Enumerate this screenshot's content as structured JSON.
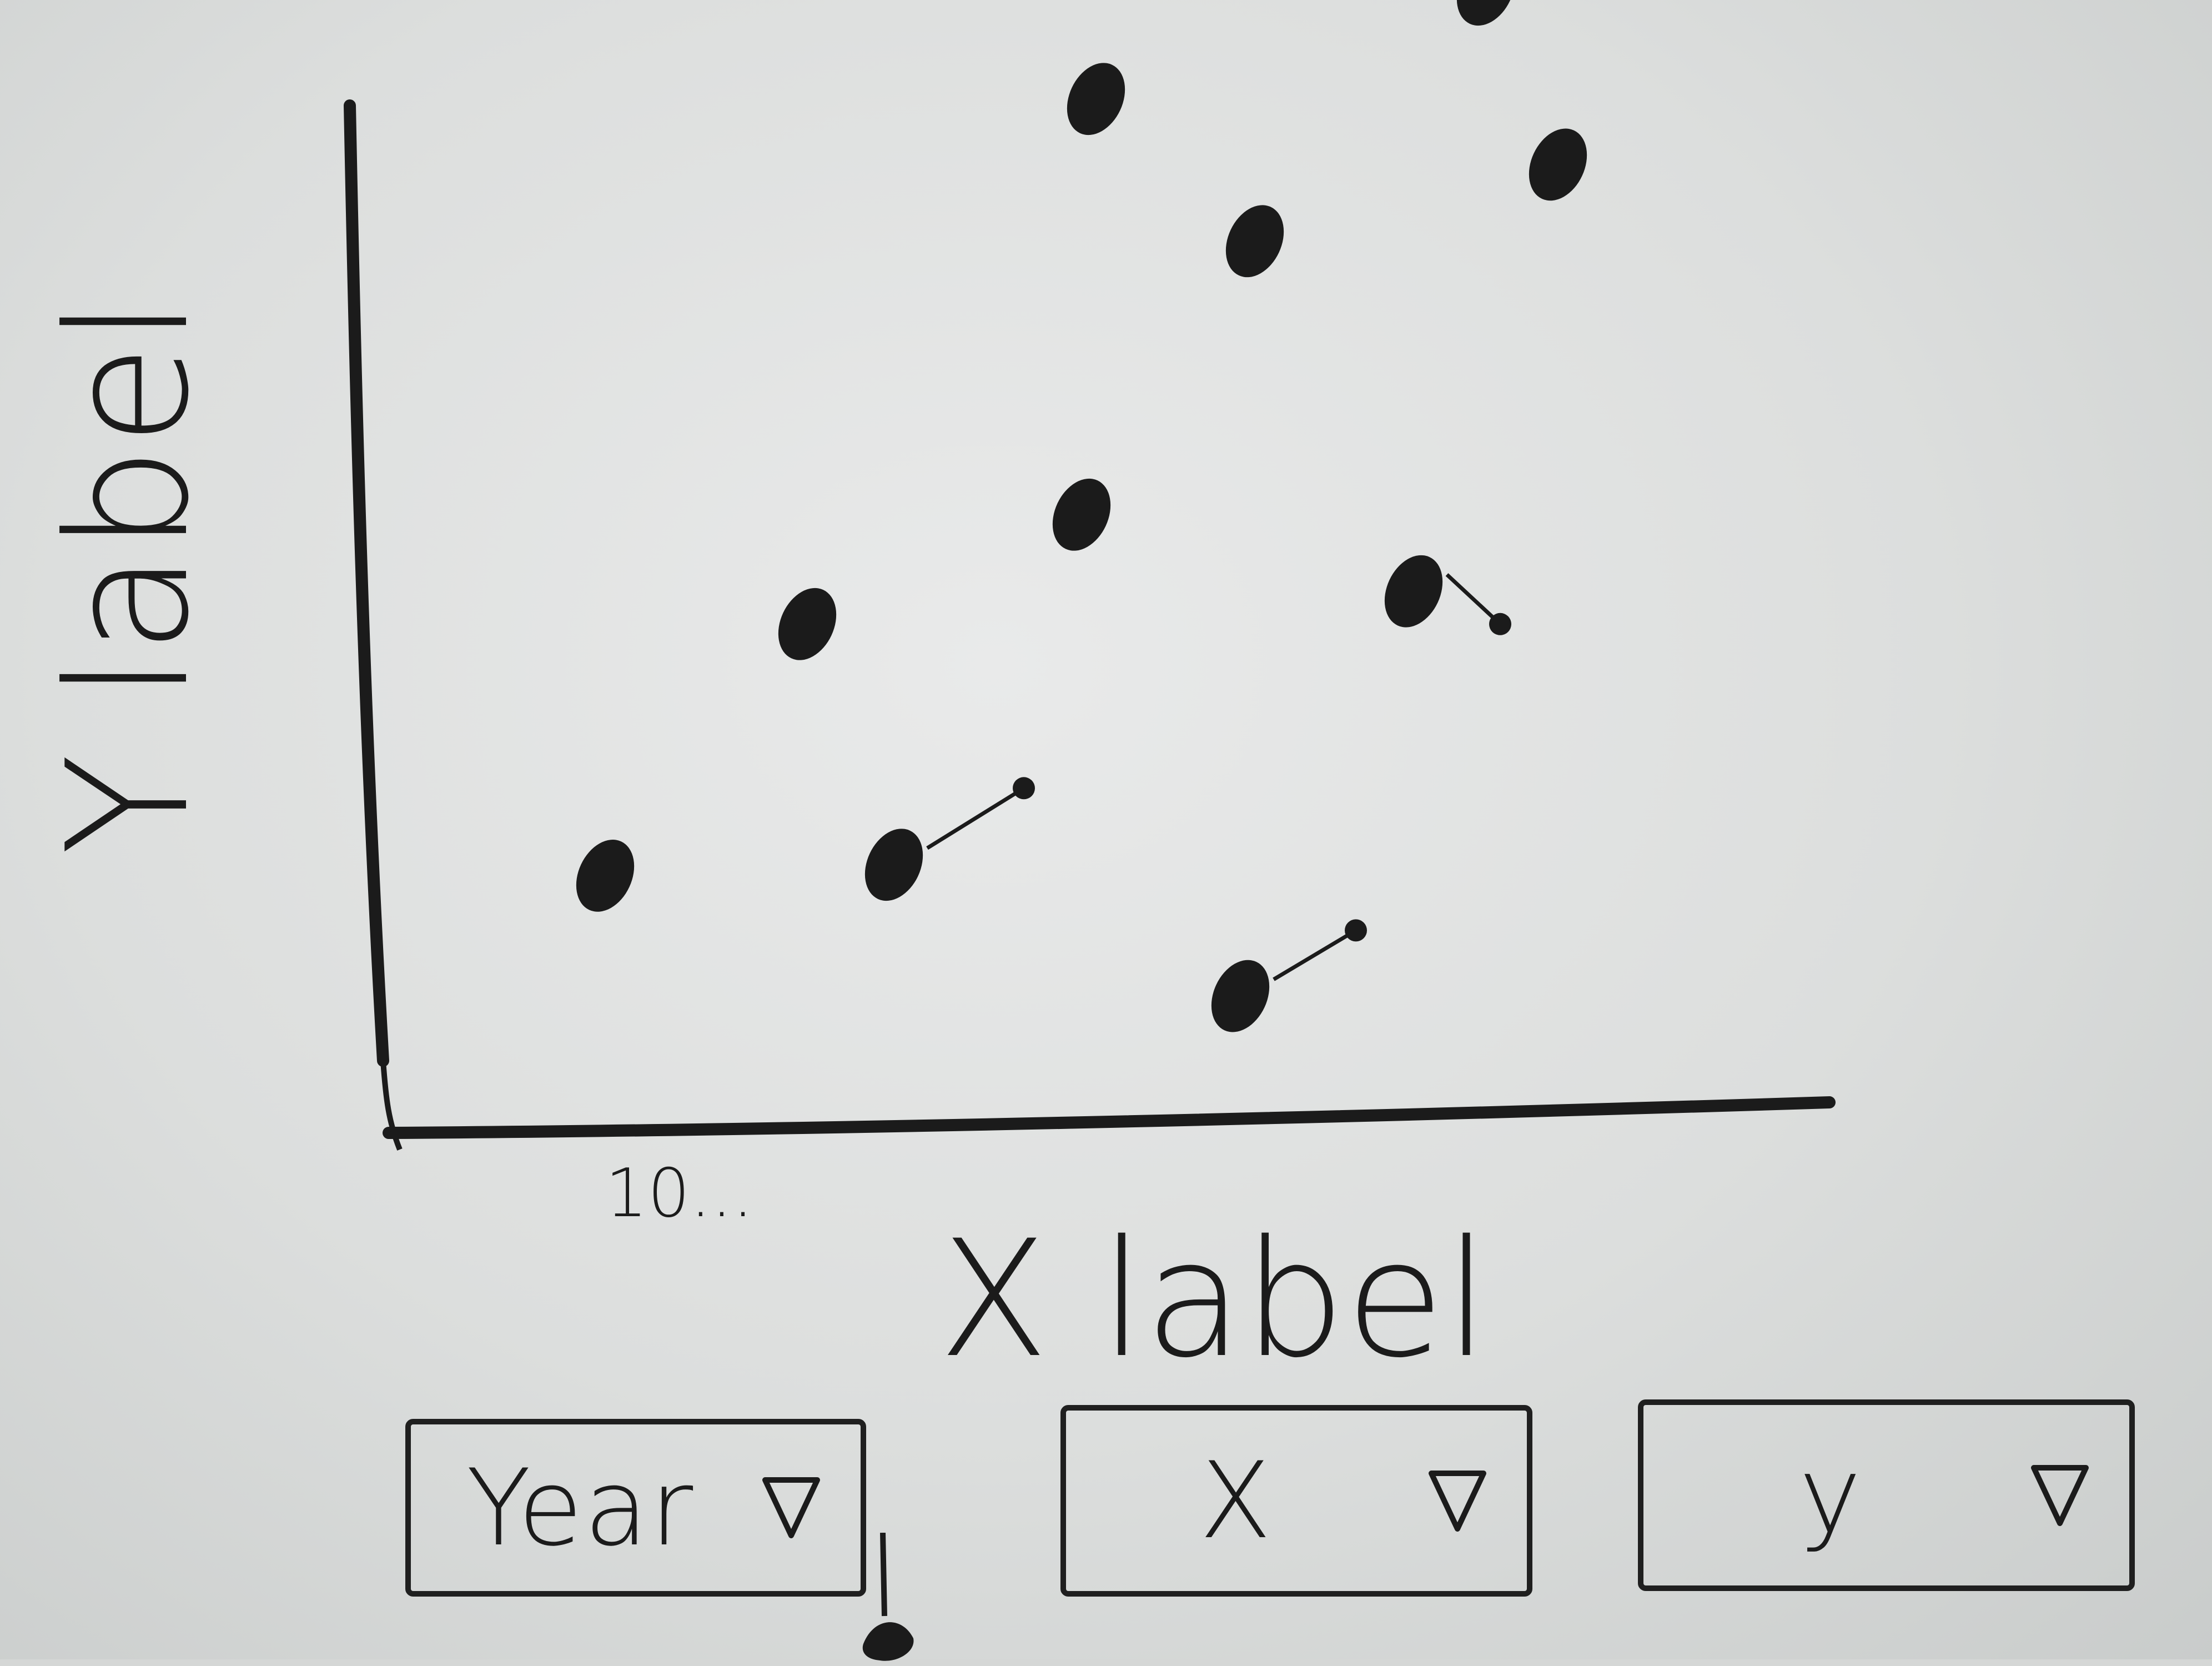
{
  "chart_data": {
    "type": "scatter",
    "title": "",
    "xlabel": "X label",
    "ylabel": "Y label",
    "x_tick_label": "10...",
    "xlim": [
      0,
      10
    ],
    "ylim": [
      0,
      10
    ],
    "grid": false,
    "points": [
      {
        "x": 1.5,
        "y": 2.3
      },
      {
        "x": 2.9,
        "y": 4.6
      },
      {
        "x": 3.5,
        "y": 2.4
      },
      {
        "x": 4.8,
        "y": 5.6
      },
      {
        "x": 4.9,
        "y": 9.4
      },
      {
        "x": 5.9,
        "y": 1.2
      },
      {
        "x": 6.0,
        "y": 8.1
      },
      {
        "x": 7.1,
        "y": 4.9
      },
      {
        "x": 7.6,
        "y": 10.4
      },
      {
        "x": 8.1,
        "y": 8.8
      }
    ],
    "trails": [
      {
        "from": 2,
        "dx": 0.9,
        "dy": 0.7
      },
      {
        "from": 5,
        "dx": 0.8,
        "dy": 0.6
      },
      {
        "from": 7,
        "dx": 0.6,
        "dy": -0.3
      }
    ]
  },
  "controls": {
    "year": {
      "label": "Year"
    },
    "x": {
      "label": "X"
    },
    "y": {
      "label": "y"
    }
  },
  "colors": {
    "ink": "#1b1b1b",
    "board": "#dcdedd"
  }
}
